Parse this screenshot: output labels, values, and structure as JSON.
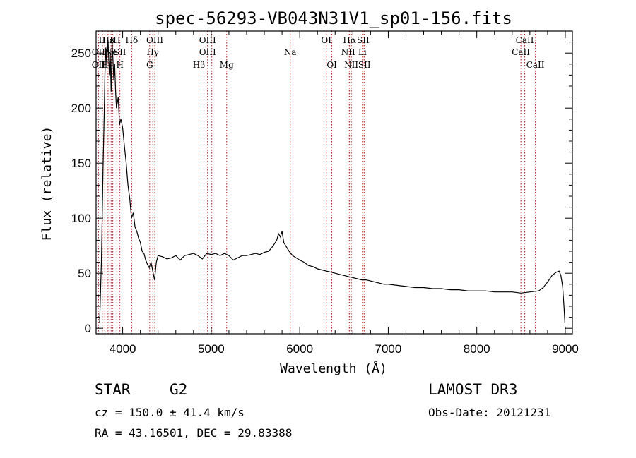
{
  "chart_data": {
    "type": "line",
    "title": "spec-56293-VB043N31V1_sp01-156.fits",
    "xlabel": "Wavelength (Å)",
    "ylabel": "Flux (relative)",
    "xlim": [
      3700,
      9080
    ],
    "ylim": [
      -5,
      270
    ],
    "xticks": [
      4000,
      5000,
      6000,
      7000,
      8000,
      9000
    ],
    "xtick_labels": [
      "4000",
      "5000",
      "6000",
      "7000",
      "8000",
      "9000"
    ],
    "yticks": [
      0,
      50,
      100,
      150,
      200,
      250
    ],
    "ytick_labels": [
      "0",
      "50",
      "100",
      "150",
      "200",
      "250"
    ],
    "line_color": "#000000",
    "marker_color": "#aa0000",
    "spectrum": [
      [
        3740,
        5
      ],
      [
        3760,
        60
      ],
      [
        3780,
        150
      ],
      [
        3790,
        190
      ],
      [
        3800,
        230
      ],
      [
        3810,
        255
      ],
      [
        3820,
        240
      ],
      [
        3835,
        262
      ],
      [
        3850,
        230
      ],
      [
        3860,
        250
      ],
      [
        3870,
        215
      ],
      [
        3880,
        260
      ],
      [
        3890,
        245
      ],
      [
        3900,
        225
      ],
      [
        3910,
        240
      ],
      [
        3920,
        215
      ],
      [
        3930,
        200
      ],
      [
        3950,
        210
      ],
      [
        3965,
        185
      ],
      [
        3980,
        190
      ],
      [
        4000,
        182
      ],
      [
        4020,
        165
      ],
      [
        4040,
        150
      ],
      [
        4060,
        130
      ],
      [
        4080,
        118
      ],
      [
        4100,
        100
      ],
      [
        4120,
        105
      ],
      [
        4140,
        92
      ],
      [
        4160,
        88
      ],
      [
        4180,
        82
      ],
      [
        4200,
        78
      ],
      [
        4220,
        70
      ],
      [
        4240,
        68
      ],
      [
        4260,
        62
      ],
      [
        4280,
        58
      ],
      [
        4300,
        55
      ],
      [
        4320,
        60
      ],
      [
        4340,
        52
      ],
      [
        4360,
        44
      ],
      [
        4380,
        60
      ],
      [
        4400,
        66
      ],
      [
        4450,
        65
      ],
      [
        4500,
        63
      ],
      [
        4550,
        64
      ],
      [
        4600,
        66
      ],
      [
        4650,
        62
      ],
      [
        4700,
        66
      ],
      [
        4750,
        67
      ],
      [
        4800,
        68
      ],
      [
        4850,
        66
      ],
      [
        4900,
        63
      ],
      [
        4950,
        68
      ],
      [
        5000,
        67
      ],
      [
        5050,
        68
      ],
      [
        5100,
        66
      ],
      [
        5150,
        68
      ],
      [
        5200,
        66
      ],
      [
        5250,
        62
      ],
      [
        5300,
        64
      ],
      [
        5350,
        66
      ],
      [
        5400,
        66
      ],
      [
        5450,
        67
      ],
      [
        5500,
        68
      ],
      [
        5550,
        67
      ],
      [
        5600,
        69
      ],
      [
        5650,
        70
      ],
      [
        5700,
        75
      ],
      [
        5740,
        80
      ],
      [
        5760,
        86
      ],
      [
        5780,
        83
      ],
      [
        5800,
        88
      ],
      [
        5820,
        78
      ],
      [
        5850,
        74
      ],
      [
        5880,
        70
      ],
      [
        5920,
        66
      ],
      [
        5960,
        64
      ],
      [
        6000,
        62
      ],
      [
        6050,
        60
      ],
      [
        6100,
        57
      ],
      [
        6150,
        56
      ],
      [
        6200,
        54
      ],
      [
        6250,
        53
      ],
      [
        6300,
        52
      ],
      [
        6350,
        51
      ],
      [
        6400,
        50
      ],
      [
        6450,
        49
      ],
      [
        6500,
        48
      ],
      [
        6550,
        47
      ],
      [
        6600,
        46
      ],
      [
        6650,
        45
      ],
      [
        6700,
        44
      ],
      [
        6750,
        44
      ],
      [
        6800,
        43
      ],
      [
        6850,
        42
      ],
      [
        6900,
        41
      ],
      [
        6950,
        40
      ],
      [
        7000,
        40
      ],
      [
        7100,
        39
      ],
      [
        7200,
        38
      ],
      [
        7300,
        37
      ],
      [
        7400,
        37
      ],
      [
        7500,
        36
      ],
      [
        7600,
        36
      ],
      [
        7700,
        35
      ],
      [
        7800,
        35
      ],
      [
        7900,
        34
      ],
      [
        8000,
        34
      ],
      [
        8100,
        34
      ],
      [
        8200,
        33
      ],
      [
        8300,
        33
      ],
      [
        8400,
        33
      ],
      [
        8500,
        32
      ],
      [
        8600,
        33
      ],
      [
        8700,
        34
      ],
      [
        8750,
        37
      ],
      [
        8800,
        42
      ],
      [
        8850,
        48
      ],
      [
        8900,
        51
      ],
      [
        8930,
        52
      ],
      [
        8950,
        48
      ],
      [
        8970,
        38
      ],
      [
        8985,
        20
      ],
      [
        8995,
        5
      ]
    ],
    "lines": [
      {
        "label": "H",
        "x": 3771,
        "row": 1
      },
      {
        "label": "OII",
        "x": 3727,
        "row": 2
      },
      {
        "label": "OII",
        "x": 3727,
        "row": 3
      },
      {
        "label": "H",
        "x": 3798,
        "row": 3
      },
      {
        "label": "Hε",
        "x": 3835,
        "row": 1
      },
      {
        "label": "K",
        "x": 3889,
        "row": 1
      },
      {
        "label": "H",
        "x": 3934,
        "row": 1
      },
      {
        "label": "Ne",
        "x": 3869,
        "row": 2
      },
      {
        "label": "SII",
        "x": 3969,
        "row": 2
      },
      {
        "label": "H",
        "x": 3969,
        "row": 3
      },
      {
        "label": "Hδ",
        "x": 4102,
        "row": 1
      },
      {
        "label": "OIII",
        "x": 4363,
        "row": 1
      },
      {
        "label": "Hγ",
        "x": 4340,
        "row": 2
      },
      {
        "label": "G",
        "x": 4305,
        "row": 3
      },
      {
        "label": "OIII",
        "x": 4959,
        "row": 1
      },
      {
        "label": "OIII",
        "x": 4959,
        "row": 2
      },
      {
        "label": "Hβ",
        "x": 4861,
        "row": 3
      },
      {
        "label": "Mg",
        "x": 5175,
        "row": 3
      },
      {
        "label": "Na",
        "x": 5893,
        "row": 2
      },
      {
        "label": "OI",
        "x": 6300,
        "row": 1
      },
      {
        "label": "OI",
        "x": 6363,
        "row": 3
      },
      {
        "label": "Hα",
        "x": 6563,
        "row": 1
      },
      {
        "label": "SII",
        "x": 6716,
        "row": 1
      },
      {
        "label": "NII",
        "x": 6548,
        "row": 2
      },
      {
        "label": "Li",
        "x": 6708,
        "row": 2
      },
      {
        "label": "NII",
        "x": 6583,
        "row": 3
      },
      {
        "label": "SII",
        "x": 6731,
        "row": 3
      },
      {
        "label": "CaII",
        "x": 8542,
        "row": 1
      },
      {
        "label": "CaII",
        "x": 8498,
        "row": 2
      },
      {
        "label": "CaII",
        "x": 8662,
        "row": 3
      }
    ],
    "marker_xs": [
      3727,
      3771,
      3798,
      3835,
      3869,
      3889,
      3934,
      3969,
      4102,
      4305,
      4340,
      4363,
      4861,
      4959,
      5007,
      5175,
      5893,
      6300,
      6363,
      6548,
      6563,
      6583,
      6708,
      6716,
      6731,
      8498,
      8542,
      8662
    ]
  },
  "info": {
    "object_class": "STAR",
    "subclass": "G2",
    "survey": "LAMOST DR3",
    "cz": "cz = 150.0 ± 41.4 km/s",
    "obs_date": "Obs-Date: 20121231",
    "coords": "RA =  43.16501, DEC =  29.83388"
  }
}
